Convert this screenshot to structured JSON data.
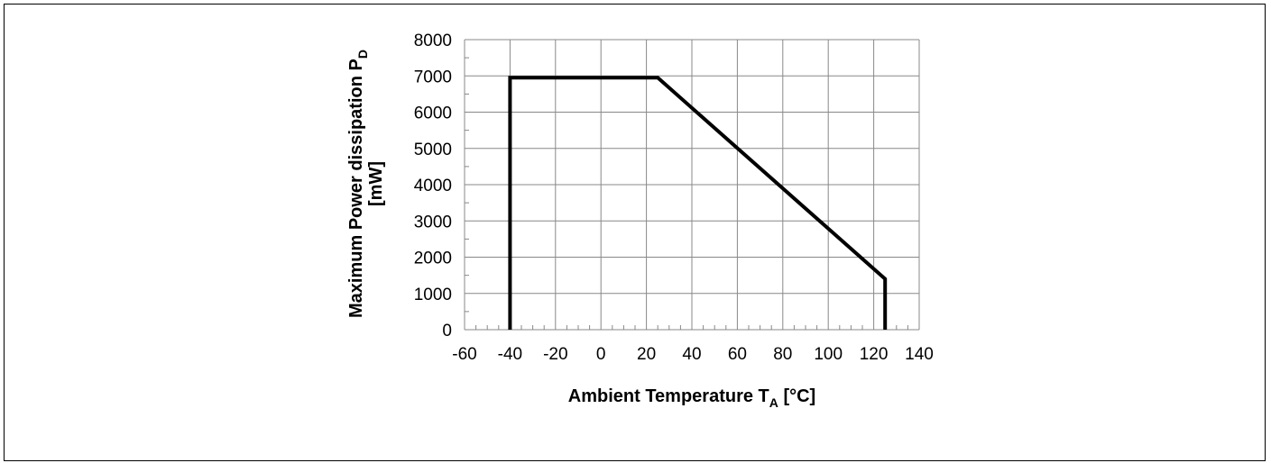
{
  "chart_data": {
    "type": "line",
    "title": "",
    "xlabel": {
      "main": "Ambient Temperature T",
      "sub": "A",
      "unit": " [°C]"
    },
    "ylabel": {
      "main": "Maximum Power dissipation P",
      "sub": "D",
      "unit": "[mW]"
    },
    "xlim": [
      -60,
      140
    ],
    "ylim": [
      0,
      8000
    ],
    "x_ticks": [
      -60,
      -40,
      -20,
      0,
      20,
      40,
      60,
      80,
      100,
      120,
      140
    ],
    "y_ticks": [
      0,
      1000,
      2000,
      3000,
      4000,
      5000,
      6000,
      7000,
      8000
    ],
    "x_minor_step": 5,
    "grid": true,
    "series": [
      {
        "color": "#000000",
        "points": [
          [
            -40,
            0
          ],
          [
            -40,
            6950
          ],
          [
            25,
            6950
          ],
          [
            125,
            1400
          ],
          [
            125,
            0
          ]
        ]
      }
    ]
  }
}
